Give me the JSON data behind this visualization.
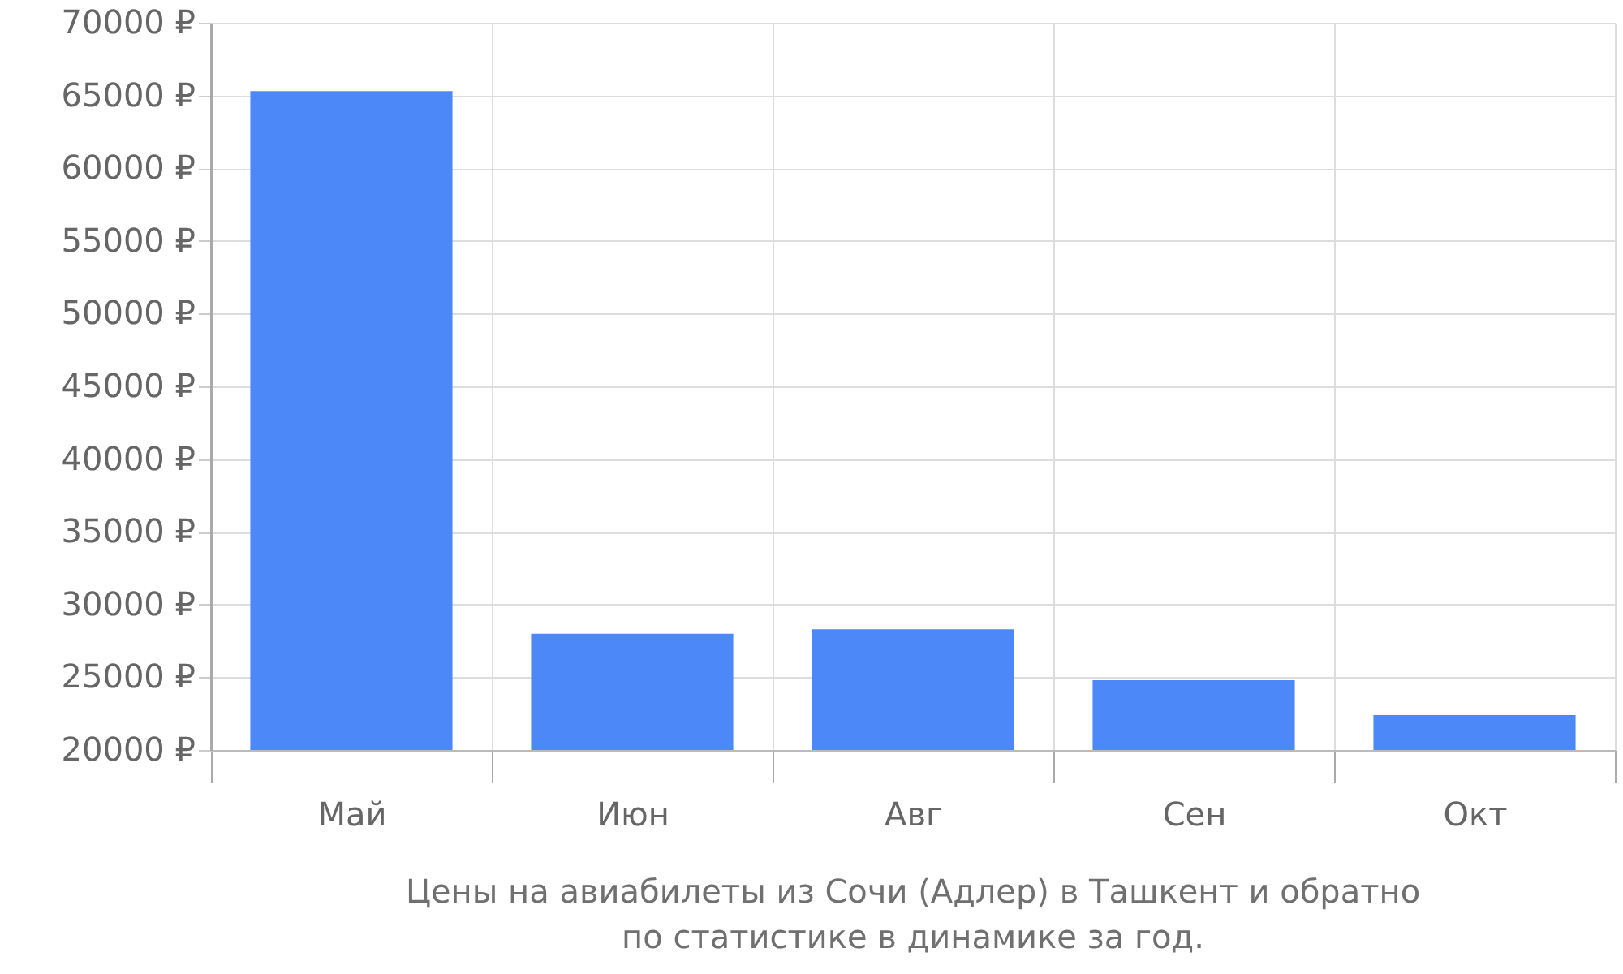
{
  "chart_data": {
    "type": "bar",
    "title": "Цены на авиабилеты из Сочи (Адлер) в Ташкент и обратно\nпо статистике в динамике за год.",
    "categories": [
      "Май",
      "Июн",
      "Авг",
      "Сен",
      "Окт"
    ],
    "values": [
      65300,
      28000,
      28300,
      24800,
      22400
    ],
    "color": "#4d88f9",
    "ylim": [
      20000,
      70000
    ],
    "yticks": [
      {
        "value": 20000,
        "label": "20000 ₽"
      },
      {
        "value": 25000,
        "label": "25000 ₽"
      },
      {
        "value": 30000,
        "label": "30000 ₽"
      },
      {
        "value": 35000,
        "label": "35000 ₽"
      },
      {
        "value": 40000,
        "label": "40000 ₽"
      },
      {
        "value": 45000,
        "label": "45000 ₽"
      },
      {
        "value": 50000,
        "label": "50000 ₽"
      },
      {
        "value": 55000,
        "label": "55000 ₽"
      },
      {
        "value": 60000,
        "label": "60000 ₽"
      },
      {
        "value": 65000,
        "label": "65000 ₽"
      },
      {
        "value": 70000,
        "label": "70000 ₽"
      }
    ],
    "grid": true
  }
}
